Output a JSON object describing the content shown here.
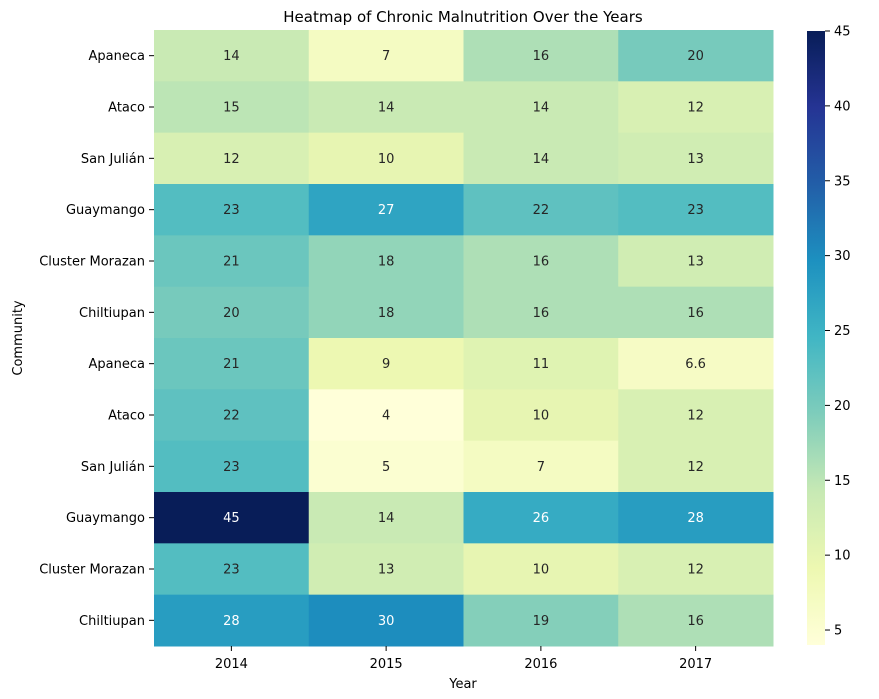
{
  "chart_data": {
    "type": "heatmap",
    "title": "Heatmap of Chronic Malnutrition Over the Years",
    "xlabel": "Year",
    "ylabel": "Community",
    "x_categories": [
      "2014",
      "2015",
      "2016",
      "2017"
    ],
    "y_categories": [
      "Apaneca",
      "Ataco",
      "San Julián",
      "Guaymango",
      "Cluster Morazan",
      "Chiltiupan",
      "Apaneca",
      "Ataco",
      "San Julián",
      "Guaymango",
      "Cluster Morazan",
      "Chiltiupan"
    ],
    "values": [
      [
        14,
        7,
        16,
        20
      ],
      [
        15,
        14,
        14,
        12
      ],
      [
        12,
        10,
        14,
        13
      ],
      [
        23,
        27,
        22,
        23
      ],
      [
        21,
        18,
        16,
        13
      ],
      [
        20,
        18,
        16,
        16
      ],
      [
        21,
        9,
        11,
        6.6
      ],
      [
        22,
        4,
        10,
        12
      ],
      [
        23,
        5,
        7,
        12
      ],
      [
        45,
        14,
        26,
        28
      ],
      [
        23,
        13,
        10,
        12
      ],
      [
        28,
        30,
        19,
        16
      ]
    ],
    "colormap": "YlGnBu",
    "vmin": 4,
    "vmax": 45,
    "colorbar_ticks": [
      5,
      10,
      15,
      20,
      25,
      30,
      35,
      40,
      45
    ],
    "annotated": true,
    "grid": false
  }
}
